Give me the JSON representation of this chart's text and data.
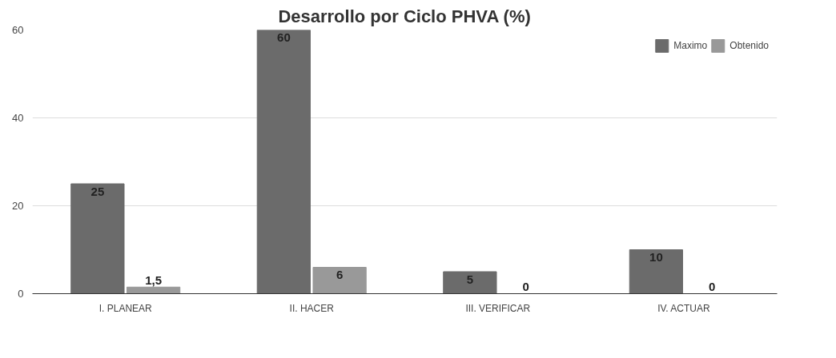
{
  "chart_data": {
    "type": "bar",
    "title": "Desarrollo por Ciclo PHVA (%)",
    "categories": [
      "I. PLANEAR",
      "II. HACER",
      "III. VERIFICAR",
      "IV. ACTUAR"
    ],
    "series": [
      {
        "name": "Maximo",
        "color": "#6b6b6b",
        "values": [
          25,
          60,
          5,
          10
        ],
        "value_labels": [
          "25",
          "60",
          "5",
          "10"
        ]
      },
      {
        "name": "Obtenido",
        "color": "#999999",
        "values": [
          1.5,
          6,
          0,
          0
        ],
        "value_labels": [
          "1,5",
          "6",
          "0",
          "0"
        ]
      }
    ],
    "ylim": [
      0,
      60
    ],
    "yticks": [
      0,
      20,
      40,
      60
    ],
    "grid": "y",
    "legend": "top right"
  }
}
